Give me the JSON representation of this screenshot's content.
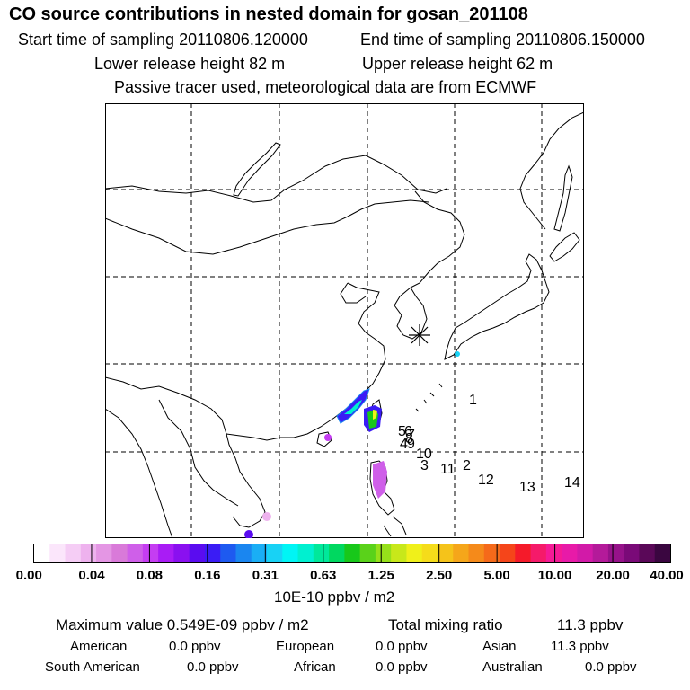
{
  "title": "CO  source contributions in nested domain for gosan_201108",
  "start_time": "Start time of sampling 20110806.120000",
  "end_time": "End time of sampling 20110806.150000",
  "lower_height": "Lower release height   82 m",
  "upper_height": "Upper release height   62 m",
  "tracer_note": "Passive tracer used, meteorological data are from ECMWF",
  "colorbar": {
    "labels": [
      "0.00",
      "0.04",
      "0.08",
      "0.16",
      "0.31",
      "0.63",
      "1.25",
      "2.50",
      "5.00",
      "10.00",
      "20.00",
      "40.00"
    ],
    "units": "10E-10 ppbv / m2",
    "colors": [
      "#ffffff",
      "#fbe6fb",
      "#f5cdf5",
      "#eeb2ee",
      "#e496e4",
      "#d97ad9",
      "#cf5fe9",
      "#c53df2",
      "#a91cf5",
      "#8a10f0",
      "#5a0cf0",
      "#3a1cf5",
      "#1e5af0",
      "#1a86f0",
      "#1aaef5",
      "#18d2f5",
      "#00f5f5",
      "#00f0d0",
      "#00e89a",
      "#00d860",
      "#18c81a",
      "#5ad21a",
      "#96e01a",
      "#c8e81a",
      "#f0f01a",
      "#f5dc1a",
      "#f5c31a",
      "#f5a61a",
      "#f58a1a",
      "#f56a1a",
      "#f5451a",
      "#f51a2a",
      "#f51a6a",
      "#f51a96",
      "#e81aa8",
      "#d21aa8",
      "#b41a9a",
      "#96128a",
      "#7a0a78",
      "#5a0858",
      "#3a0640"
    ]
  },
  "map": {
    "receptor_marker": "star-asterisk",
    "trajectory_labels": [
      "1",
      "2",
      "3",
      "4",
      "5",
      "6",
      "7",
      "8",
      "9",
      "10",
      "11",
      "12",
      "13",
      "14"
    ]
  },
  "stats": {
    "max_label": "Maximum value  0.549E-09 ppbv / m2",
    "total_label": "Total mixing ratio",
    "total_value": "11.3 ppbv"
  },
  "regions": [
    {
      "name": "American",
      "value": "0.0 ppbv"
    },
    {
      "name": "European",
      "value": "0.0 ppbv"
    },
    {
      "name": "Asian",
      "value": "11.3 ppbv"
    },
    {
      "name": "South American",
      "value": "0.0 ppbv"
    },
    {
      "name": "African",
      "value": "0.0 ppbv"
    },
    {
      "name": "Australian",
      "value": "0.0 ppbv"
    }
  ]
}
